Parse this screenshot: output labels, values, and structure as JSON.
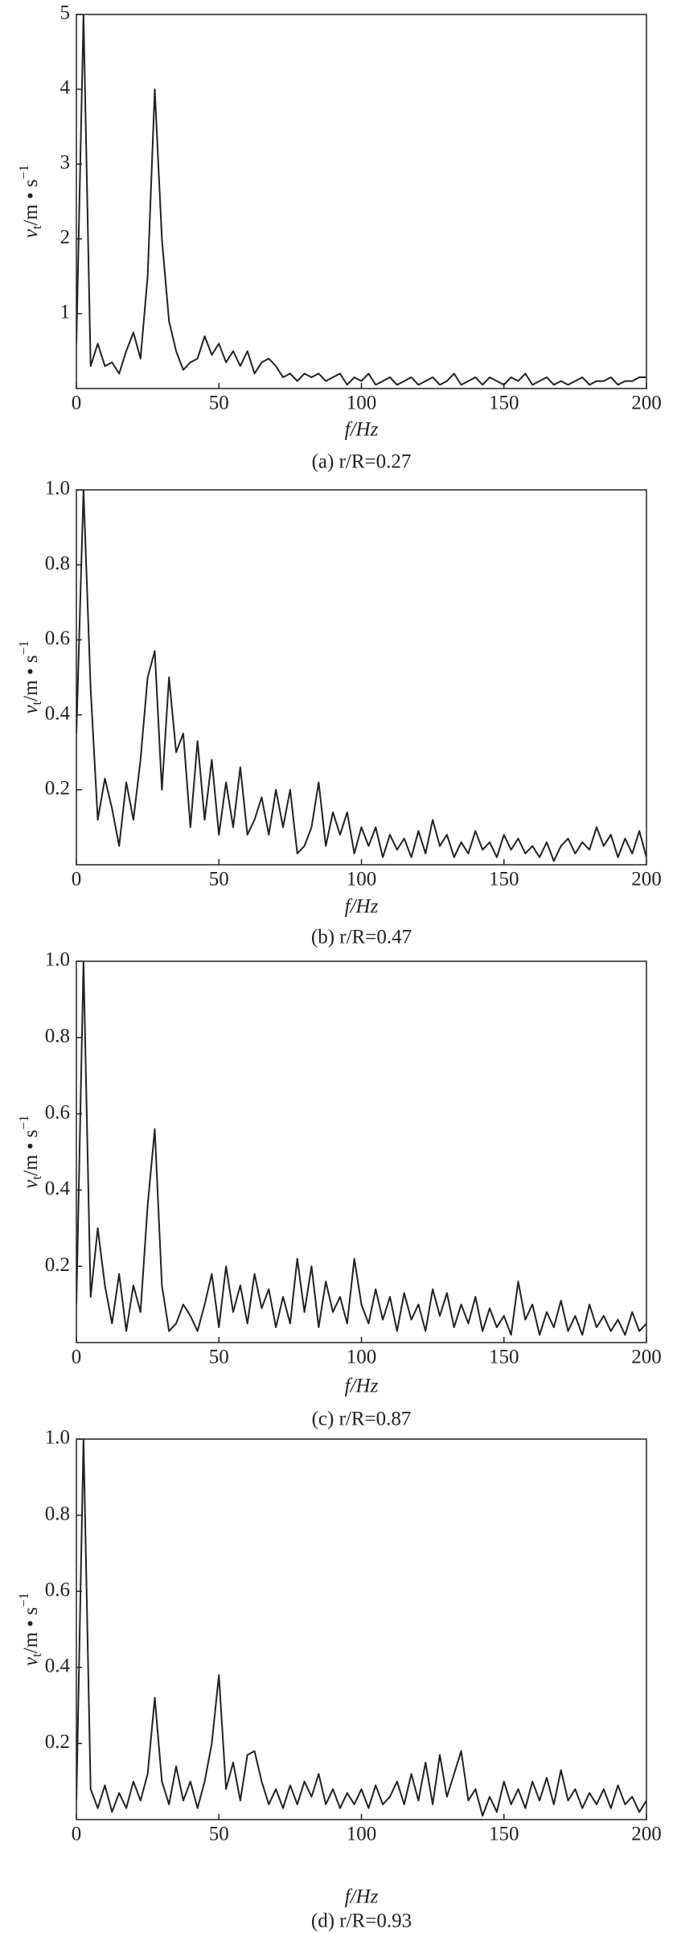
{
  "chart_data": [
    {
      "type": "line",
      "caption": "(a) r/R=0.27",
      "xlabel": "f/Hz",
      "ylabel": {
        "symbol": "v",
        "sub": "t",
        "unit": "/m • s",
        "sup": "−1"
      },
      "color": "#222222",
      "xlim": [
        0,
        200
      ],
      "xticks": [
        0,
        50,
        100,
        150,
        200
      ],
      "ylim": [
        0,
        5
      ],
      "yticks": [
        1,
        2,
        3,
        4,
        5
      ],
      "x": [
        0,
        2.5,
        5,
        7.5,
        10,
        12.5,
        15,
        17.5,
        20,
        22.5,
        25,
        27.5,
        30,
        32.5,
        35,
        37.5,
        40,
        42.5,
        45,
        47.5,
        50,
        52.5,
        55,
        57.5,
        60,
        62.5,
        65,
        67.5,
        70,
        72.5,
        75,
        77.5,
        80,
        82.5,
        85,
        87.5,
        90,
        92.5,
        95,
        97.5,
        100,
        102.5,
        105,
        107.5,
        110,
        112.5,
        115,
        117.5,
        120,
        122.5,
        125,
        127.5,
        130,
        132.5,
        135,
        137.5,
        140,
        142.5,
        145,
        147.5,
        150,
        152.5,
        155,
        157.5,
        160,
        162.5,
        165,
        167.5,
        170,
        172.5,
        175,
        177.5,
        180,
        182.5,
        185,
        187.5,
        190,
        192.5,
        195,
        197.5,
        200
      ],
      "values": [
        0.6,
        5.0,
        0.3,
        0.6,
        0.3,
        0.35,
        0.2,
        0.5,
        0.75,
        0.4,
        1.5,
        4.0,
        2.0,
        0.9,
        0.5,
        0.25,
        0.35,
        0.4,
        0.7,
        0.45,
        0.6,
        0.35,
        0.5,
        0.3,
        0.5,
        0.2,
        0.35,
        0.4,
        0.3,
        0.15,
        0.2,
        0.1,
        0.2,
        0.15,
        0.2,
        0.1,
        0.15,
        0.2,
        0.05,
        0.15,
        0.1,
        0.2,
        0.05,
        0.1,
        0.15,
        0.05,
        0.1,
        0.15,
        0.05,
        0.1,
        0.15,
        0.05,
        0.1,
        0.2,
        0.05,
        0.1,
        0.15,
        0.05,
        0.15,
        0.1,
        0.05,
        0.15,
        0.1,
        0.2,
        0.05,
        0.1,
        0.15,
        0.05,
        0.1,
        0.05,
        0.1,
        0.15,
        0.05,
        0.1,
        0.1,
        0.15,
        0.05,
        0.1,
        0.1,
        0.15,
        0.15
      ]
    },
    {
      "type": "line",
      "caption": "(b) r/R=0.47",
      "xlabel": "f/Hz",
      "ylabel": {
        "symbol": "v",
        "sub": "t",
        "unit": "/m • s",
        "sup": "−1"
      },
      "color": "#222222",
      "xlim": [
        0,
        200
      ],
      "xticks": [
        0,
        50,
        100,
        150,
        200
      ],
      "ylim": [
        0,
        1
      ],
      "yticks": [
        0.2,
        0.4,
        0.6,
        0.8,
        {
          "value": 1,
          "label": "1.0"
        }
      ],
      "x": [
        0,
        2.5,
        5,
        7.5,
        10,
        12.5,
        15,
        17.5,
        20,
        22.5,
        25,
        27.5,
        30,
        32.5,
        35,
        37.5,
        40,
        42.5,
        45,
        47.5,
        50,
        52.5,
        55,
        57.5,
        60,
        62.5,
        65,
        67.5,
        70,
        72.5,
        75,
        77.5,
        80,
        82.5,
        85,
        87.5,
        90,
        92.5,
        95,
        97.5,
        100,
        102.5,
        105,
        107.5,
        110,
        112.5,
        115,
        117.5,
        120,
        122.5,
        125,
        127.5,
        130,
        132.5,
        135,
        137.5,
        140,
        142.5,
        145,
        147.5,
        150,
        152.5,
        155,
        157.5,
        160,
        162.5,
        165,
        167.5,
        170,
        172.5,
        175,
        177.5,
        180,
        182.5,
        185,
        187.5,
        190,
        192.5,
        195,
        197.5,
        200
      ],
      "values": [
        0.35,
        1.0,
        0.47,
        0.12,
        0.23,
        0.15,
        0.05,
        0.22,
        0.12,
        0.28,
        0.5,
        0.57,
        0.2,
        0.5,
        0.3,
        0.35,
        0.1,
        0.33,
        0.12,
        0.28,
        0.08,
        0.22,
        0.1,
        0.26,
        0.08,
        0.12,
        0.18,
        0.08,
        0.2,
        0.1,
        0.2,
        0.03,
        0.05,
        0.1,
        0.22,
        0.05,
        0.14,
        0.08,
        0.14,
        0.03,
        0.1,
        0.05,
        0.1,
        0.02,
        0.08,
        0.04,
        0.07,
        0.02,
        0.09,
        0.03,
        0.12,
        0.05,
        0.08,
        0.02,
        0.06,
        0.03,
        0.09,
        0.04,
        0.06,
        0.02,
        0.08,
        0.04,
        0.07,
        0.03,
        0.05,
        0.02,
        0.06,
        0.01,
        0.05,
        0.07,
        0.03,
        0.06,
        0.04,
        0.1,
        0.05,
        0.08,
        0.02,
        0.07,
        0.03,
        0.09,
        0.02
      ]
    },
    {
      "type": "line",
      "caption": "(c) r/R=0.87",
      "xlabel": "f/Hz",
      "ylabel": {
        "symbol": "v",
        "sub": "t",
        "unit": "/m • s",
        "sup": "−1"
      },
      "color": "#222222",
      "xlim": [
        0,
        200
      ],
      "xticks": [
        0,
        50,
        100,
        150,
        200
      ],
      "ylim": [
        0,
        1
      ],
      "yticks": [
        0.2,
        0.4,
        0.6,
        0.8,
        {
          "value": 1,
          "label": "1.0"
        }
      ],
      "x": [
        0,
        2.5,
        5,
        7.5,
        10,
        12.5,
        15,
        17.5,
        20,
        22.5,
        25,
        27.5,
        30,
        32.5,
        35,
        37.5,
        40,
        42.5,
        45,
        47.5,
        50,
        52.5,
        55,
        57.5,
        60,
        62.5,
        65,
        67.5,
        70,
        72.5,
        75,
        77.5,
        80,
        82.5,
        85,
        87.5,
        90,
        92.5,
        95,
        97.5,
        100,
        102.5,
        105,
        107.5,
        110,
        112.5,
        115,
        117.5,
        120,
        122.5,
        125,
        127.5,
        130,
        132.5,
        135,
        137.5,
        140,
        142.5,
        145,
        147.5,
        150,
        152.5,
        155,
        157.5,
        160,
        162.5,
        165,
        167.5,
        170,
        172.5,
        175,
        177.5,
        180,
        182.5,
        185,
        187.5,
        190,
        192.5,
        195,
        197.5,
        200
      ],
      "values": [
        0.1,
        1.0,
        0.12,
        0.3,
        0.15,
        0.05,
        0.18,
        0.03,
        0.15,
        0.08,
        0.36,
        0.56,
        0.15,
        0.03,
        0.05,
        0.1,
        0.07,
        0.03,
        0.1,
        0.18,
        0.04,
        0.2,
        0.08,
        0.15,
        0.05,
        0.18,
        0.09,
        0.14,
        0.04,
        0.12,
        0.05,
        0.22,
        0.08,
        0.2,
        0.04,
        0.16,
        0.08,
        0.12,
        0.05,
        0.22,
        0.1,
        0.05,
        0.14,
        0.06,
        0.12,
        0.03,
        0.13,
        0.06,
        0.1,
        0.03,
        0.14,
        0.07,
        0.13,
        0.04,
        0.1,
        0.05,
        0.12,
        0.03,
        0.09,
        0.04,
        0.07,
        0.02,
        0.16,
        0.06,
        0.1,
        0.02,
        0.08,
        0.04,
        0.11,
        0.03,
        0.07,
        0.02,
        0.1,
        0.04,
        0.07,
        0.03,
        0.06,
        0.02,
        0.08,
        0.03,
        0.05
      ]
    },
    {
      "type": "line",
      "caption": "(d) r/R=0.93",
      "xlabel": "f/Hz",
      "ylabel": {
        "symbol": "v",
        "sub": "t",
        "unit": "/m • s",
        "sup": "−1"
      },
      "color": "#222222",
      "xlim": [
        0,
        200
      ],
      "xticks": [
        0,
        50,
        100,
        150,
        200
      ],
      "ylim": [
        0,
        1
      ],
      "yticks": [
        0.2,
        0.4,
        0.6,
        0.8,
        {
          "value": 1,
          "label": "1.0"
        }
      ],
      "x": [
        0,
        2.5,
        5,
        7.5,
        10,
        12.5,
        15,
        17.5,
        20,
        22.5,
        25,
        27.5,
        30,
        32.5,
        35,
        37.5,
        40,
        42.5,
        45,
        47.5,
        50,
        52.5,
        55,
        57.5,
        60,
        62.5,
        65,
        67.5,
        70,
        72.5,
        75,
        77.5,
        80,
        82.5,
        85,
        87.5,
        90,
        92.5,
        95,
        97.5,
        100,
        102.5,
        105,
        107.5,
        110,
        112.5,
        115,
        117.5,
        120,
        122.5,
        125,
        127.5,
        130,
        132.5,
        135,
        137.5,
        140,
        142.5,
        145,
        147.5,
        150,
        152.5,
        155,
        157.5,
        160,
        162.5,
        165,
        167.5,
        170,
        172.5,
        175,
        177.5,
        180,
        182.5,
        185,
        187.5,
        190,
        192.5,
        195,
        197.5,
        200
      ],
      "values": [
        0.05,
        1.0,
        0.08,
        0.03,
        0.09,
        0.02,
        0.07,
        0.03,
        0.1,
        0.05,
        0.12,
        0.32,
        0.1,
        0.04,
        0.14,
        0.05,
        0.1,
        0.03,
        0.1,
        0.2,
        0.38,
        0.08,
        0.15,
        0.05,
        0.17,
        0.18,
        0.1,
        0.04,
        0.08,
        0.03,
        0.09,
        0.04,
        0.1,
        0.06,
        0.12,
        0.04,
        0.08,
        0.03,
        0.07,
        0.04,
        0.08,
        0.03,
        0.09,
        0.04,
        0.06,
        0.1,
        0.04,
        0.12,
        0.05,
        0.15,
        0.04,
        0.17,
        0.06,
        0.12,
        0.18,
        0.05,
        0.08,
        0.01,
        0.06,
        0.02,
        0.1,
        0.04,
        0.08,
        0.03,
        0.1,
        0.05,
        0.11,
        0.04,
        0.13,
        0.05,
        0.08,
        0.03,
        0.07,
        0.04,
        0.08,
        0.03,
        0.09,
        0.04,
        0.06,
        0.02,
        0.05
      ]
    }
  ]
}
